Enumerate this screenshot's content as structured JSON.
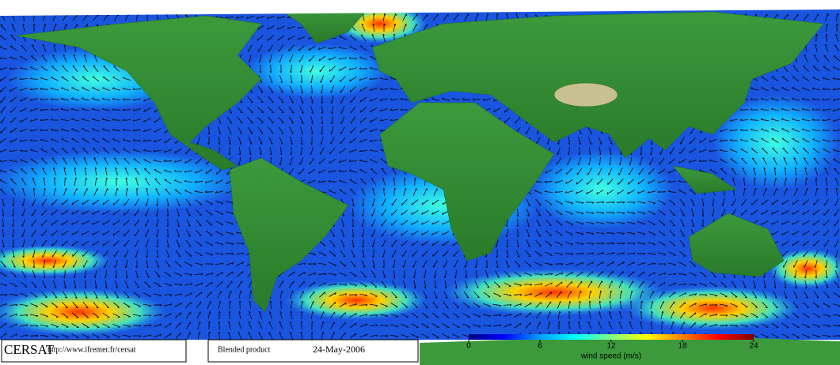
{
  "footer": {
    "logo": "CERSAT",
    "url": "http://www.ifremer.fr/cersat",
    "product": "Blended product",
    "date": "24-May-2006"
  },
  "colorbar": {
    "label": "wind speed (m/s)",
    "lim": [
      0,
      24
    ],
    "ticks": [
      0,
      6,
      12,
      18,
      24
    ],
    "colors": [
      "#000080",
      "#0000ff",
      "#00a0ff",
      "#00ffff",
      "#80ff80",
      "#ffff00",
      "#ff8000",
      "#ff0000",
      "#800000"
    ]
  }
}
